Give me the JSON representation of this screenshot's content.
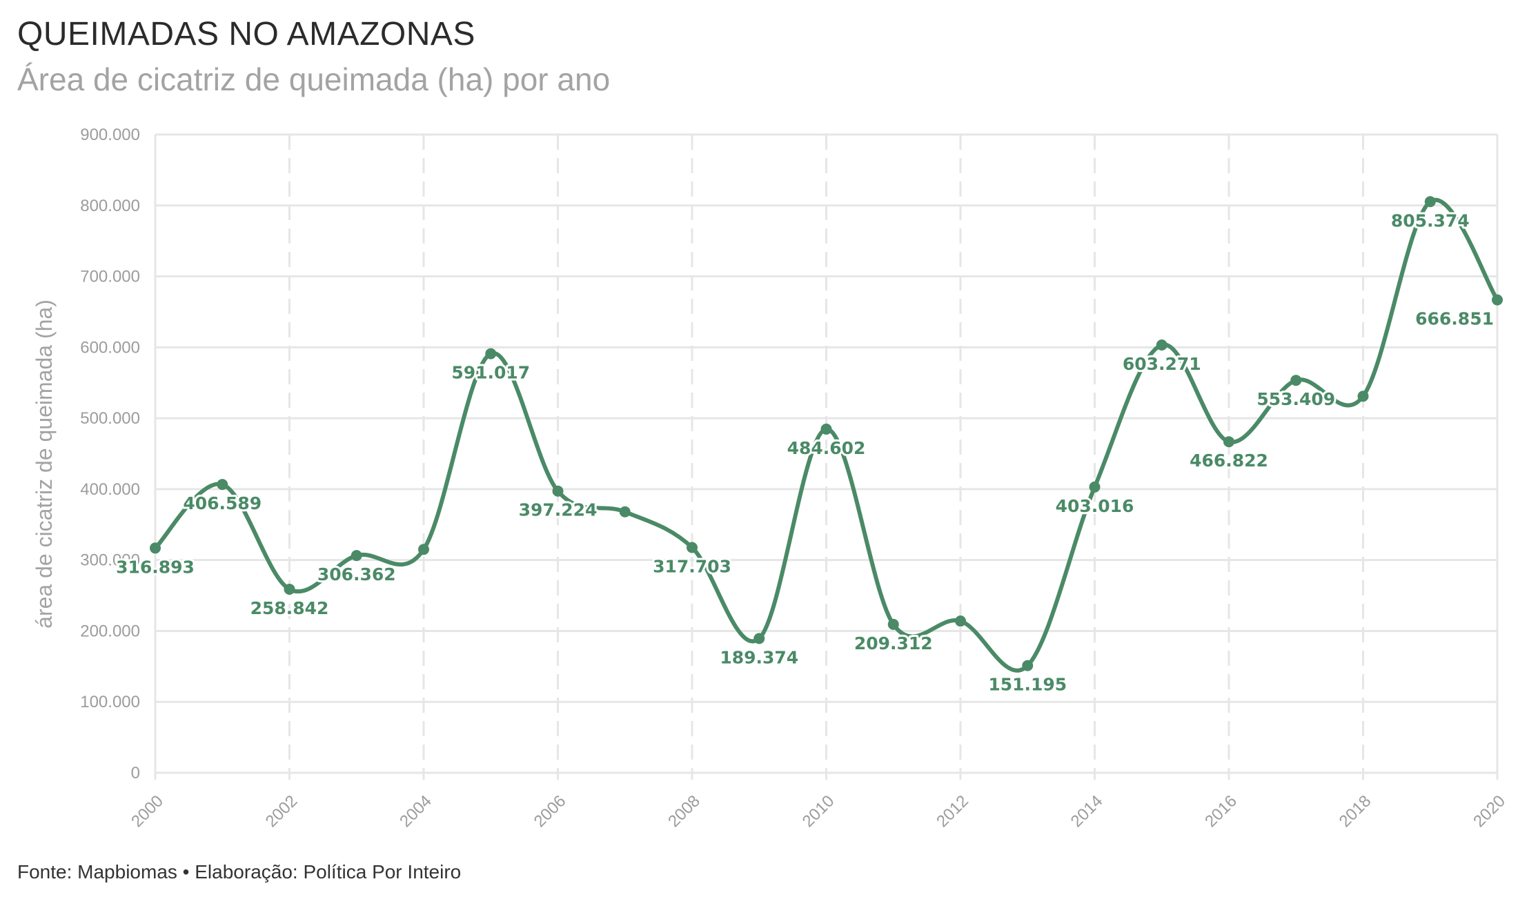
{
  "title": "QUEIMADAS NO AMAZONAS",
  "subtitle": "Área de cicatriz de queimada (ha) por ano",
  "caption": "Fonte: Mapbiomas • Elaboração: Política Por Inteiro",
  "colors": {
    "line": "#4a8a66",
    "grid": "#e6e6e6",
    "axis_text": "#9c9c9c"
  },
  "chart_data": {
    "type": "line",
    "title": "QUEIMADAS NO AMAZONAS",
    "subtitle": "Área de cicatriz de queimada (ha) por ano",
    "ylabel": "área de cicatriz de queimada (ha)",
    "xlabel": "",
    "ylim": [
      0,
      900000
    ],
    "yticks": [
      0,
      100000,
      200000,
      300000,
      400000,
      500000,
      600000,
      700000,
      800000,
      900000
    ],
    "ytick_labels": [
      "0",
      "100.000",
      "200.000",
      "300.000",
      "400.000",
      "500.000",
      "600.000",
      "700.000",
      "800.000",
      "900.000"
    ],
    "xlim": [
      2000,
      2020
    ],
    "xticks": [
      2000,
      2002,
      2004,
      2006,
      2008,
      2010,
      2012,
      2014,
      2016,
      2018,
      2020
    ],
    "xtick_labels": [
      "2000",
      "2002",
      "2004",
      "2006",
      "2008",
      "2010",
      "2012",
      "2014",
      "2016",
      "2018",
      "2020"
    ],
    "grid": true,
    "x": [
      2000,
      2001,
      2002,
      2003,
      2004,
      2005,
      2006,
      2007,
      2008,
      2009,
      2010,
      2011,
      2012,
      2013,
      2014,
      2015,
      2016,
      2017,
      2018,
      2019,
      2020
    ],
    "values": [
      316893,
      406589,
      258842,
      306362,
      315000,
      591017,
      397224,
      368000,
      317703,
      189374,
      484602,
      209312,
      214000,
      151195,
      403016,
      603271,
      466822,
      553409,
      531000,
      805374,
      666851
    ],
    "data_labels": [
      "316.893",
      "406.589",
      "258.842",
      "306.362",
      "",
      "591.017",
      "397.224",
      "",
      "317.703",
      "189.374",
      "484.602",
      "209.312",
      "",
      "151.195",
      "403.016",
      "603.271",
      "466.822",
      "553.409",
      "",
      "805.374",
      "666.851"
    ]
  }
}
